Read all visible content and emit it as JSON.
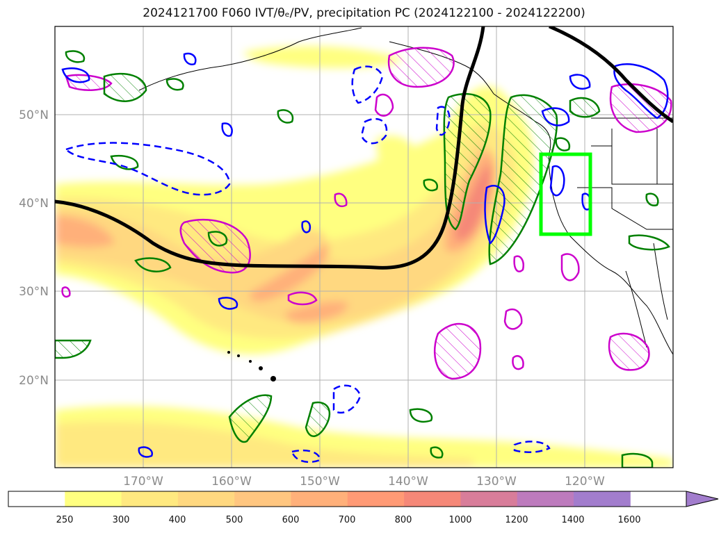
{
  "title": "2024121700 F060 IVT/θₑ/PV, precipitation PC (2024122100 - 2024122200)",
  "map": {
    "lat_labels": [
      "50°N",
      "40°N",
      "30°N",
      "20°N"
    ],
    "lon_labels": [
      "170°W",
      "160°W",
      "150°W",
      "140°W",
      "130°W",
      "120°W"
    ],
    "gridlines": true,
    "features": [
      "coastlines",
      "borders",
      "states"
    ],
    "highlight_box": {
      "color": "#00ff00",
      "lat_range": [
        36.5,
        45.5
      ],
      "lon_range": [
        -125,
        -120
      ]
    }
  },
  "colorbar": {
    "ticks": [
      "250",
      "300",
      "400",
      "500",
      "600",
      "700",
      "800",
      "1000",
      "1200",
      "1400",
      "1600"
    ],
    "colors": [
      "#ffffff",
      "#ffff80",
      "#ffe980",
      "#ffd880",
      "#ffc680",
      "#ffb07a",
      "#ff9a75",
      "#f58878",
      "#d87d9a",
      "#bd7bbd",
      "#a27dcd"
    ],
    "extend": "max"
  },
  "overlays": {
    "ivt_jet_line_color": "#000000",
    "theta_e_contour_color": "#0000ff",
    "pv_contour_color": "#cc00cc",
    "precip_contour_color": "#008000"
  }
}
